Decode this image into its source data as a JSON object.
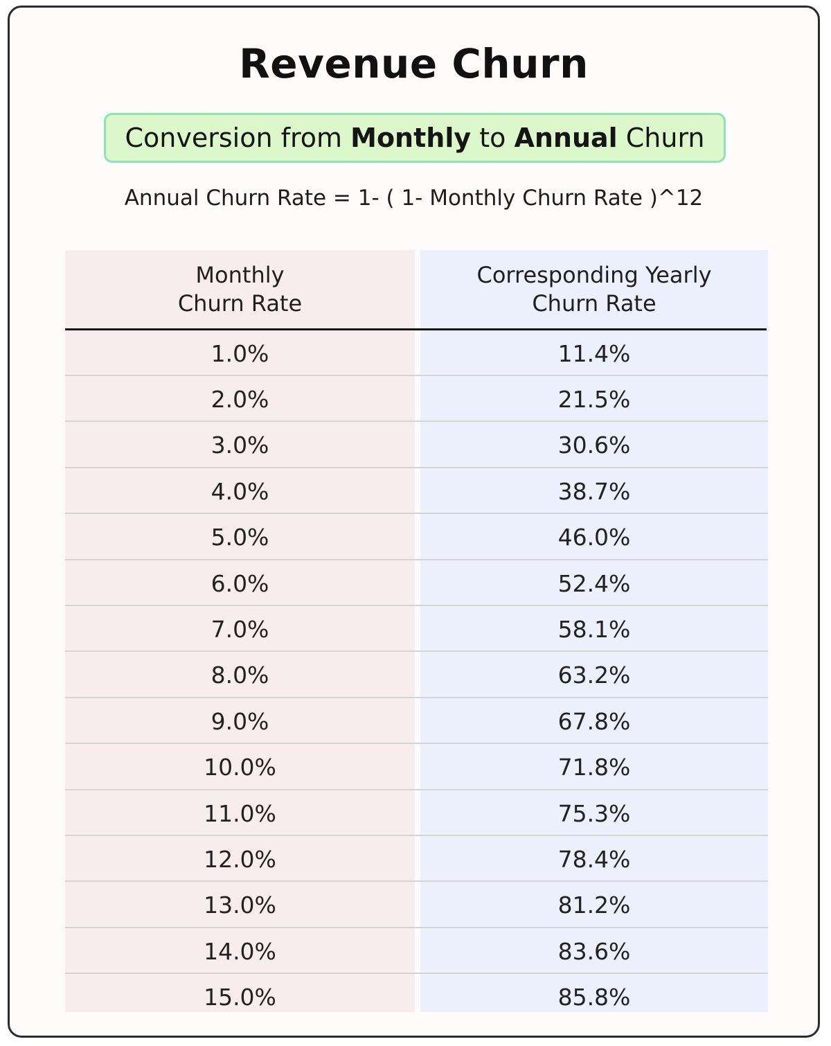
{
  "title": "Revenue Churn",
  "subtitle": {
    "prefix": "Conversion from ",
    "bold1": "Monthly",
    "middle": " to ",
    "bold2": "Annual",
    "suffix": " Churn"
  },
  "formula": "Annual Churn Rate = 1- ( 1- Monthly Churn Rate )^12",
  "table": {
    "headers": {
      "monthly_line1": "Monthly",
      "monthly_line2": "Churn Rate",
      "yearly_line1": "Corresponding Yearly",
      "yearly_line2": "Churn Rate"
    },
    "rows": [
      {
        "monthly": "1.0%",
        "yearly": "11.4%"
      },
      {
        "monthly": "2.0%",
        "yearly": "21.5%"
      },
      {
        "monthly": "3.0%",
        "yearly": "30.6%"
      },
      {
        "monthly": "4.0%",
        "yearly": "38.7%"
      },
      {
        "monthly": "5.0%",
        "yearly": "46.0%"
      },
      {
        "monthly": "6.0%",
        "yearly": "52.4%"
      },
      {
        "monthly": "7.0%",
        "yearly": "58.1%"
      },
      {
        "monthly": "8.0%",
        "yearly": "63.2%"
      },
      {
        "monthly": "9.0%",
        "yearly": "67.8%"
      },
      {
        "monthly": "10.0%",
        "yearly": "71.8%"
      },
      {
        "monthly": "11.0%",
        "yearly": "75.3%"
      },
      {
        "monthly": "12.0%",
        "yearly": "78.4%"
      },
      {
        "monthly": "13.0%",
        "yearly": "81.2%"
      },
      {
        "monthly": "14.0%",
        "yearly": "83.6%"
      },
      {
        "monthly": "15.0%",
        "yearly": "85.8%"
      }
    ]
  },
  "colors": {
    "subtitle_bg": "#dcf7c9",
    "subtitle_border": "#8ee3b5",
    "monthly_column_bg": "#f7eded",
    "yearly_column_bg": "#eceffc"
  }
}
